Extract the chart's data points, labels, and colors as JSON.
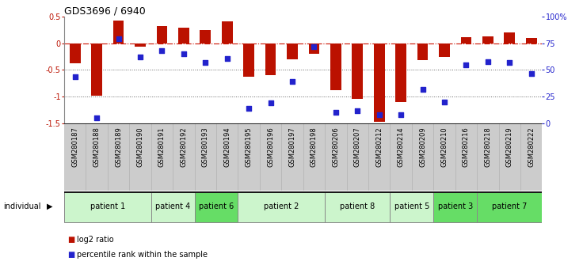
{
  "title": "GDS3696 / 6940",
  "samples": [
    "GSM280187",
    "GSM280188",
    "GSM280189",
    "GSM280190",
    "GSM280191",
    "GSM280192",
    "GSM280193",
    "GSM280194",
    "GSM280195",
    "GSM280196",
    "GSM280197",
    "GSM280198",
    "GSM280206",
    "GSM280207",
    "GSM280212",
    "GSM280214",
    "GSM280209",
    "GSM280210",
    "GSM280216",
    "GSM280218",
    "GSM280219",
    "GSM280222"
  ],
  "log2_ratio": [
    -0.38,
    -0.98,
    0.43,
    -0.06,
    0.32,
    0.3,
    0.25,
    0.42,
    -0.62,
    -0.6,
    -0.3,
    -0.2,
    -0.88,
    -1.05,
    -1.48,
    -1.1,
    -0.32,
    -0.26,
    0.12,
    0.13,
    0.2,
    0.1
  ],
  "percentile": [
    44,
    5,
    79,
    62,
    68,
    65,
    57,
    61,
    14,
    19,
    39,
    72,
    10,
    12,
    8,
    8,
    32,
    20,
    55,
    58,
    57,
    47
  ],
  "patients": [
    {
      "label": "patient 1",
      "start": 0,
      "end": 4,
      "color": "#ccf5cc"
    },
    {
      "label": "patient 4",
      "start": 4,
      "end": 6,
      "color": "#ccf5cc"
    },
    {
      "label": "patient 6",
      "start": 6,
      "end": 8,
      "color": "#66dd66"
    },
    {
      "label": "patient 2",
      "start": 8,
      "end": 12,
      "color": "#ccf5cc"
    },
    {
      "label": "patient 8",
      "start": 12,
      "end": 15,
      "color": "#ccf5cc"
    },
    {
      "label": "patient 5",
      "start": 15,
      "end": 17,
      "color": "#ccf5cc"
    },
    {
      "label": "patient 3",
      "start": 17,
      "end": 19,
      "color": "#66dd66"
    },
    {
      "label": "patient 7",
      "start": 19,
      "end": 22,
      "color": "#66dd66"
    }
  ],
  "bar_color": "#bb1100",
  "dot_color": "#2222cc",
  "zero_line_color": "#cc1100",
  "dotted_line_color": "#666666",
  "bg_color": "#ffffff",
  "plot_bg": "#ffffff",
  "label_bg": "#cccccc",
  "ylim_left": [
    -1.5,
    0.5
  ],
  "ylim_right": [
    0,
    100
  ],
  "yticks_left": [
    0.5,
    0.0,
    -0.5,
    -1.0,
    -1.5
  ],
  "yticks_right": [
    100,
    75,
    50,
    25,
    0
  ],
  "ytick_labels_right": [
    "100%",
    "75",
    "50",
    "25",
    "0"
  ]
}
